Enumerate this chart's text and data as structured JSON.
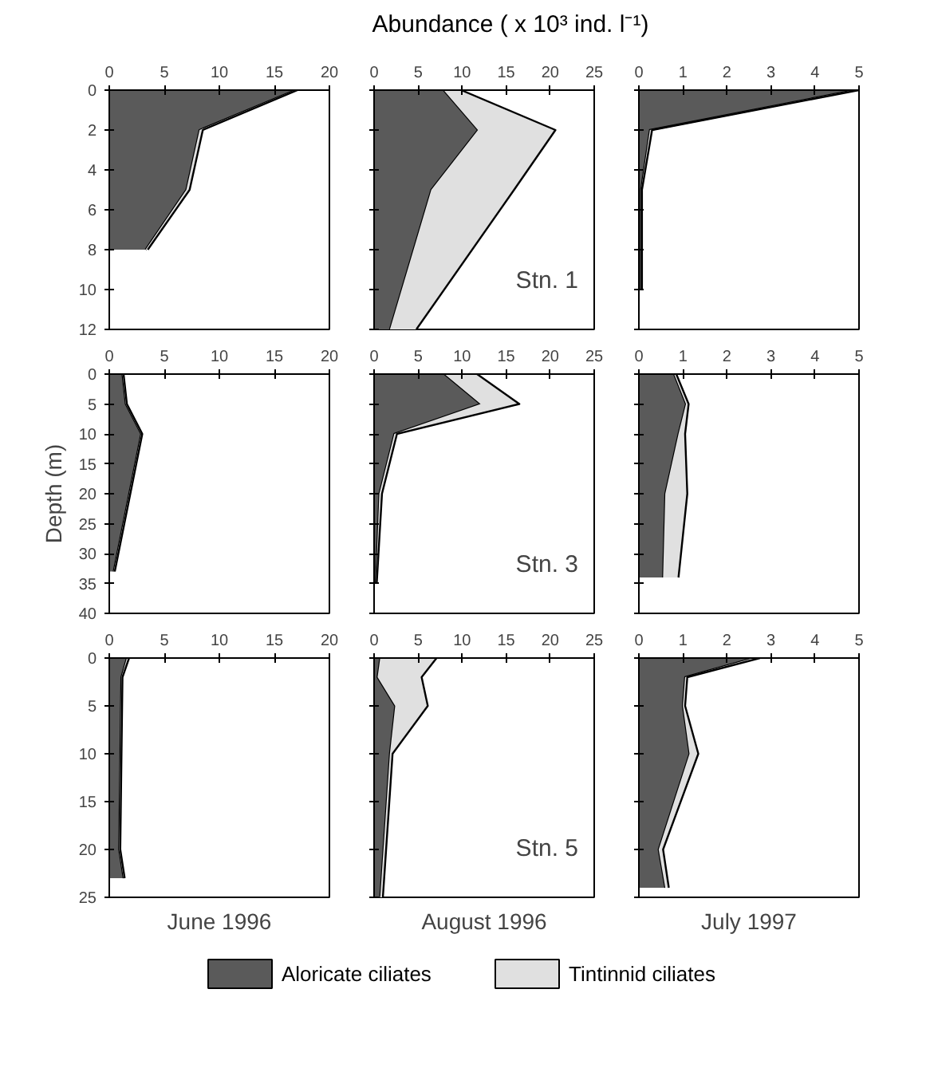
{
  "chart_data": [
    {
      "type": "area",
      "orientation": "horizontal",
      "stacked": true,
      "x": [
        0,
        2,
        5,
        8
      ],
      "xlim": [
        0,
        20
      ],
      "xticks": [
        0,
        5,
        10,
        15,
        20
      ],
      "ylim": [
        12,
        0
      ],
      "yticks": [
        0,
        2,
        4,
        6,
        8,
        10,
        12
      ],
      "grid": false,
      "series": [
        {
          "color": "#5a5a5a",
          "values": [
            16.9,
            8.2,
            7.0,
            3.3
          ]
        },
        {
          "color": "#e0e0e0",
          "values": [
            0.2,
            0.3,
            0.3,
            0.2
          ]
        }
      ]
    },
    {
      "type": "area",
      "orientation": "horizontal",
      "stacked": true,
      "xlabel": "Abundance ( x 10³ ind. l⁻¹)",
      "x": [
        0,
        2,
        5,
        12
      ],
      "xlim": [
        0,
        25
      ],
      "xticks": [
        0,
        5,
        10,
        15,
        20,
        25
      ],
      "ylim": [
        12,
        0
      ],
      "yticks": [
        0,
        2,
        4,
        6,
        8,
        10,
        12
      ],
      "tick_labels": "x",
      "grid": false,
      "annotations": [
        "Stn. 1"
      ],
      "series": [
        {
          "color": "#5a5a5a",
          "values": [
            7.9,
            11.8,
            6.5,
            1.8
          ]
        },
        {
          "color": "#e0e0e0",
          "values": [
            2.0,
            8.8,
            9.4,
            3.0
          ]
        }
      ]
    },
    {
      "type": "area",
      "orientation": "horizontal",
      "stacked": true,
      "x": [
        0,
        2,
        5,
        10
      ],
      "xlim": [
        0,
        5
      ],
      "xticks": [
        0,
        1,
        2,
        3,
        4,
        5
      ],
      "ylim": [
        12,
        0
      ],
      "yticks": [
        0,
        2,
        4,
        6,
        8,
        10,
        12
      ],
      "tick_labels": "x",
      "grid": false,
      "series": [
        {
          "color": "#5a5a5a",
          "values": [
            4.9,
            0.25,
            0.05,
            0.05
          ]
        },
        {
          "color": "#e0e0e0",
          "values": [
            0.1,
            0.05,
            0.02,
            0.02
          ]
        }
      ]
    },
    {
      "type": "area",
      "orientation": "horizontal",
      "stacked": true,
      "ylabel": "Depth (m)",
      "x": [
        0,
        5,
        10,
        33
      ],
      "xlim": [
        0,
        20
      ],
      "xticks": [
        0,
        5,
        10,
        15,
        20
      ],
      "ylim": [
        40,
        0
      ],
      "yticks": [
        0,
        5,
        10,
        15,
        20,
        25,
        30,
        35,
        40
      ],
      "grid": false,
      "series": [
        {
          "color": "#5a5a5a",
          "values": [
            1.2,
            1.5,
            2.9,
            0.4
          ]
        },
        {
          "color": "#e0e0e0",
          "values": [
            0.1,
            0.1,
            0.1,
            0.1
          ]
        }
      ]
    },
    {
      "type": "area",
      "orientation": "horizontal",
      "stacked": true,
      "x": [
        0,
        5,
        10,
        20,
        35
      ],
      "xlim": [
        0,
        25
      ],
      "xticks": [
        0,
        5,
        10,
        15,
        20,
        25
      ],
      "ylim": [
        40,
        0
      ],
      "yticks": [
        0,
        5,
        10,
        15,
        20,
        25,
        30,
        35,
        40
      ],
      "tick_labels": "x",
      "grid": false,
      "annotations": [
        "Stn. 3"
      ],
      "series": [
        {
          "color": "#5a5a5a",
          "values": [
            8.0,
            12.1,
            2.3,
            0.6,
            0.2
          ]
        },
        {
          "color": "#e0e0e0",
          "values": [
            3.7,
            4.4,
            0.3,
            0.3,
            0.1
          ]
        }
      ]
    },
    {
      "type": "area",
      "orientation": "horizontal",
      "stacked": true,
      "x": [
        0,
        5,
        10,
        20,
        34
      ],
      "xlim": [
        0,
        5
      ],
      "xticks": [
        0,
        1,
        2,
        3,
        4,
        5
      ],
      "ylim": [
        40,
        0
      ],
      "yticks": [
        0,
        5,
        10,
        15,
        20,
        25,
        30,
        35,
        40
      ],
      "tick_labels": "x",
      "grid": false,
      "series": [
        {
          "color": "#5a5a5a",
          "values": [
            0.8,
            1.07,
            0.9,
            0.6,
            0.55
          ]
        },
        {
          "color": "#e0e0e0",
          "values": [
            0.05,
            0.06,
            0.15,
            0.5,
            0.35
          ]
        }
      ]
    },
    {
      "type": "area",
      "orientation": "horizontal",
      "stacked": true,
      "title": "June 1996",
      "x": [
        0,
        2,
        20,
        23
      ],
      "xlim": [
        0,
        20
      ],
      "xticks": [
        0,
        5,
        10,
        15,
        20
      ],
      "ylim": [
        25,
        0
      ],
      "yticks": [
        0,
        5,
        10,
        15,
        20,
        25
      ],
      "grid": false,
      "series": [
        {
          "color": "#5a5a5a",
          "values": [
            1.6,
            1.1,
            0.9,
            1.3
          ]
        },
        {
          "color": "#e0e0e0",
          "values": [
            0.2,
            0.1,
            0.1,
            0.1
          ]
        }
      ]
    },
    {
      "type": "area",
      "orientation": "horizontal",
      "stacked": true,
      "title": "August 1996",
      "x": [
        0,
        2,
        5,
        10,
        25
      ],
      "xlim": [
        0,
        25
      ],
      "xticks": [
        0,
        5,
        10,
        15,
        20,
        25
      ],
      "ylim": [
        25,
        0
      ],
      "yticks": [
        0,
        5,
        10,
        15,
        20,
        25
      ],
      "tick_labels": "x",
      "grid": false,
      "annotations": [
        "Stn. 5"
      ],
      "legend": "bottom",
      "series": [
        {
          "name": "Aloricate ciliates",
          "color": "#5a5a5a",
          "values": [
            0.7,
            0.4,
            2.4,
            1.8,
            0.7
          ]
        },
        {
          "name": "Tintinnid ciliates",
          "color": "#e0e0e0",
          "values": [
            6.4,
            5.0,
            3.7,
            0.3,
            0.3
          ]
        }
      ]
    },
    {
      "type": "area",
      "orientation": "horizontal",
      "stacked": true,
      "title": "July 1997",
      "x": [
        0,
        2,
        5,
        10,
        20,
        24
      ],
      "xlim": [
        0,
        5
      ],
      "xticks": [
        0,
        1,
        2,
        3,
        4,
        5
      ],
      "ylim": [
        25,
        0
      ],
      "yticks": [
        0,
        5,
        10,
        15,
        20,
        25
      ],
      "tick_labels": "x",
      "grid": false,
      "series": [
        {
          "color": "#5a5a5a",
          "values": [
            2.6,
            1.05,
            1.0,
            1.15,
            0.45,
            0.6
          ]
        },
        {
          "color": "#e0e0e0",
          "values": [
            0.15,
            0.05,
            0.05,
            0.2,
            0.1,
            0.08
          ]
        }
      ]
    }
  ]
}
